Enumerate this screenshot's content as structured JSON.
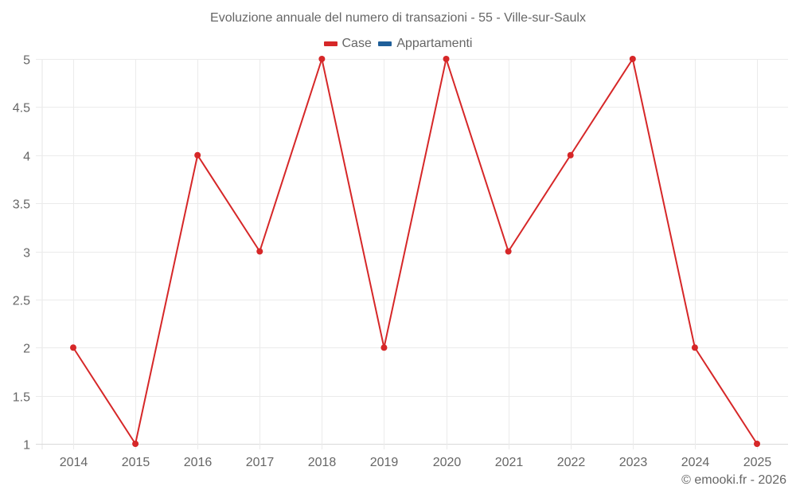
{
  "title": "Evoluzione annuale del numero di transazioni - 55 - Ville-sur-Saulx",
  "legend": [
    {
      "label": "Case",
      "color": "#d62728"
    },
    {
      "label": "Appartamenti",
      "color": "#1f5f99"
    }
  ],
  "credit": "© emooki.fr - 2026",
  "chart_data": {
    "type": "line",
    "title": "Evoluzione annuale del numero di transazioni - 55 - Ville-sur-Saulx",
    "xlabel": "",
    "ylabel": "",
    "categories": [
      "2014",
      "2015",
      "2016",
      "2017",
      "2018",
      "2019",
      "2020",
      "2021",
      "2022",
      "2023",
      "2024",
      "2025"
    ],
    "series": [
      {
        "name": "Case",
        "color": "#d62728",
        "values": [
          2,
          1,
          4,
          3,
          5,
          2,
          5,
          3,
          4,
          5,
          2,
          1
        ]
      },
      {
        "name": "Appartamenti",
        "color": "#1f5f99",
        "values": []
      }
    ],
    "ylim": [
      1,
      5
    ],
    "yticks": [
      "1",
      "1.5",
      "2",
      "2.5",
      "3",
      "3.5",
      "4",
      "4.5",
      "5"
    ],
    "grid": true,
    "legend_position": "top"
  }
}
